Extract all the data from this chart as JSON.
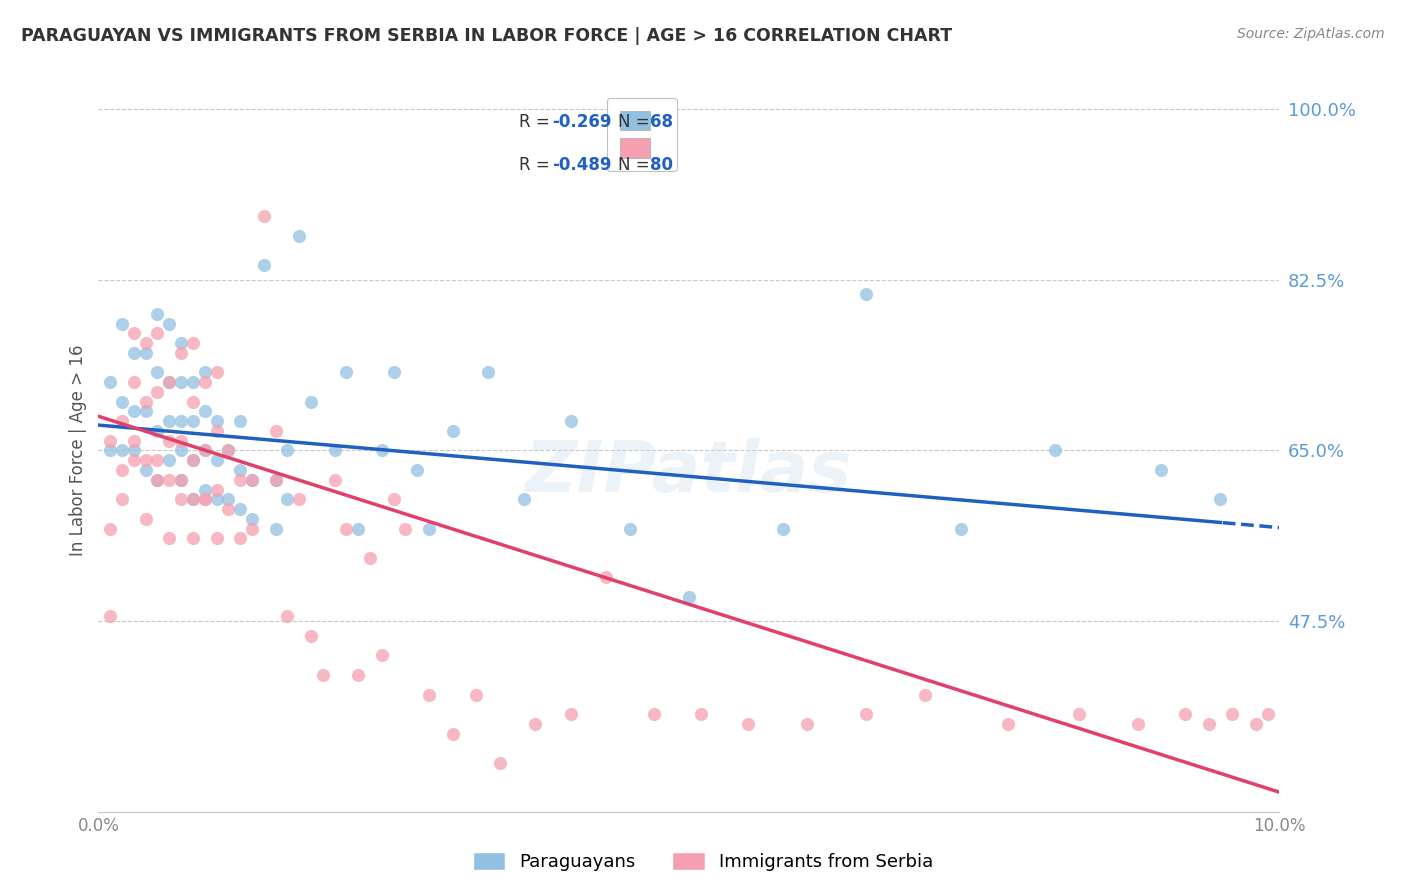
{
  "title": "PARAGUAYAN VS IMMIGRANTS FROM SERBIA IN LABOR FORCE | AGE > 16 CORRELATION CHART",
  "source_text": "Source: ZipAtlas.com",
  "ylabel": "In Labor Force | Age > 16",
  "right_ytick_values": [
    1.0,
    0.825,
    0.65,
    0.475
  ],
  "xlim": [
    0.0,
    0.1
  ],
  "ylim": [
    0.28,
    1.02
  ],
  "xtick_values": [
    0.0,
    0.1
  ],
  "blue_color": "#92c0e0",
  "pink_color": "#f5a0b0",
  "blue_line_color": "#2060c0",
  "pink_line_color": "#e0406a",
  "axis_label_color": "#5b9bd5",
  "watermark": "ZIPatlas",
  "par_R": "-0.269",
  "par_N": "68",
  "ser_R": "-0.489",
  "ser_N": "80",
  "par_intercept": 0.676,
  "par_slope": -1.05,
  "ser_intercept": 0.685,
  "ser_slope": -3.85,
  "paraguayans_x": [
    0.001,
    0.001,
    0.002,
    0.002,
    0.002,
    0.003,
    0.003,
    0.003,
    0.004,
    0.004,
    0.004,
    0.005,
    0.005,
    0.005,
    0.005,
    0.006,
    0.006,
    0.006,
    0.006,
    0.007,
    0.007,
    0.007,
    0.007,
    0.007,
    0.008,
    0.008,
    0.008,
    0.008,
    0.009,
    0.009,
    0.009,
    0.009,
    0.01,
    0.01,
    0.01,
    0.011,
    0.011,
    0.012,
    0.012,
    0.012,
    0.013,
    0.013,
    0.014,
    0.015,
    0.015,
    0.016,
    0.016,
    0.017,
    0.018,
    0.02,
    0.021,
    0.022,
    0.024,
    0.025,
    0.027,
    0.028,
    0.03,
    0.033,
    0.036,
    0.04,
    0.045,
    0.05,
    0.058,
    0.065,
    0.073,
    0.081,
    0.09,
    0.095
  ],
  "paraguayans_y": [
    0.72,
    0.65,
    0.7,
    0.65,
    0.78,
    0.65,
    0.69,
    0.75,
    0.63,
    0.69,
    0.75,
    0.62,
    0.67,
    0.73,
    0.79,
    0.64,
    0.68,
    0.72,
    0.78,
    0.62,
    0.65,
    0.68,
    0.72,
    0.76,
    0.6,
    0.64,
    0.68,
    0.72,
    0.61,
    0.65,
    0.69,
    0.73,
    0.6,
    0.64,
    0.68,
    0.6,
    0.65,
    0.59,
    0.63,
    0.68,
    0.58,
    0.62,
    0.84,
    0.57,
    0.62,
    0.6,
    0.65,
    0.87,
    0.7,
    0.65,
    0.73,
    0.57,
    0.65,
    0.73,
    0.63,
    0.57,
    0.67,
    0.73,
    0.6,
    0.68,
    0.57,
    0.5,
    0.57,
    0.81,
    0.57,
    0.65,
    0.63,
    0.6
  ],
  "serbia_x": [
    0.001,
    0.001,
    0.002,
    0.002,
    0.003,
    0.003,
    0.003,
    0.004,
    0.004,
    0.004,
    0.005,
    0.005,
    0.005,
    0.006,
    0.006,
    0.006,
    0.007,
    0.007,
    0.007,
    0.008,
    0.008,
    0.008,
    0.008,
    0.009,
    0.009,
    0.009,
    0.01,
    0.01,
    0.01,
    0.011,
    0.011,
    0.012,
    0.012,
    0.013,
    0.013,
    0.014,
    0.015,
    0.015,
    0.016,
    0.017,
    0.018,
    0.019,
    0.02,
    0.021,
    0.022,
    0.023,
    0.024,
    0.025,
    0.026,
    0.028,
    0.03,
    0.032,
    0.034,
    0.037,
    0.04,
    0.043,
    0.047,
    0.051,
    0.055,
    0.06,
    0.065,
    0.07,
    0.077,
    0.083,
    0.088,
    0.092,
    0.094,
    0.096,
    0.098,
    0.099,
    0.001,
    0.002,
    0.003,
    0.004,
    0.005,
    0.006,
    0.007,
    0.008,
    0.009,
    0.01
  ],
  "serbia_y": [
    0.48,
    0.66,
    0.63,
    0.68,
    0.66,
    0.72,
    0.77,
    0.64,
    0.7,
    0.76,
    0.64,
    0.71,
    0.77,
    0.62,
    0.66,
    0.72,
    0.62,
    0.66,
    0.75,
    0.6,
    0.64,
    0.7,
    0.76,
    0.6,
    0.65,
    0.72,
    0.61,
    0.67,
    0.73,
    0.59,
    0.65,
    0.56,
    0.62,
    0.57,
    0.62,
    0.89,
    0.62,
    0.67,
    0.48,
    0.6,
    0.46,
    0.42,
    0.62,
    0.57,
    0.42,
    0.54,
    0.44,
    0.6,
    0.57,
    0.4,
    0.36,
    0.4,
    0.33,
    0.37,
    0.38,
    0.52,
    0.38,
    0.38,
    0.37,
    0.37,
    0.38,
    0.4,
    0.37,
    0.38,
    0.37,
    0.38,
    0.37,
    0.38,
    0.37,
    0.38,
    0.57,
    0.6,
    0.64,
    0.58,
    0.62,
    0.56,
    0.6,
    0.56,
    0.6,
    0.56
  ]
}
